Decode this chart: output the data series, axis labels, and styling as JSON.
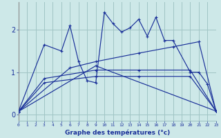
{
  "xlabel": "Graphe des températures (°c)",
  "background_color": "#cde8e8",
  "line_color": "#1a3099",
  "grid_color": "#a0c4c4",
  "x_ticks": [
    0,
    1,
    2,
    3,
    4,
    5,
    6,
    7,
    8,
    9,
    10,
    11,
    12,
    13,
    14,
    15,
    16,
    17,
    18,
    19,
    20,
    21,
    22,
    23
  ],
  "ylim": [
    -0.15,
    2.65
  ],
  "xlim": [
    0,
    23
  ],
  "yticks": [
    0,
    1,
    2
  ],
  "series": [
    {
      "x": [
        0,
        3,
        5,
        6,
        7,
        8,
        9,
        10,
        11,
        12,
        13,
        14,
        15,
        16,
        17,
        18,
        20,
        21,
        22,
        23
      ],
      "y": [
        0.07,
        1.65,
        1.5,
        2.1,
        1.25,
        0.8,
        0.75,
        2.42,
        2.15,
        1.95,
        2.05,
        2.25,
        1.85,
        2.3,
        1.75,
        1.75,
        1.0,
        1.0,
        0.72,
        0.08
      ]
    },
    {
      "x": [
        0,
        6,
        9,
        14,
        18,
        21,
        23
      ],
      "y": [
        0.07,
        1.1,
        1.25,
        1.45,
        1.6,
        1.72,
        0.08
      ]
    },
    {
      "x": [
        0,
        3,
        9,
        14,
        20,
        23
      ],
      "y": [
        0.07,
        0.85,
        1.05,
        1.05,
        1.05,
        0.08
      ]
    },
    {
      "x": [
        0,
        3,
        9,
        14,
        20,
        23
      ],
      "y": [
        0.07,
        0.75,
        0.9,
        0.9,
        0.9,
        0.08
      ]
    },
    {
      "x": [
        0,
        9,
        23
      ],
      "y": [
        0.07,
        1.15,
        0.08
      ]
    }
  ]
}
